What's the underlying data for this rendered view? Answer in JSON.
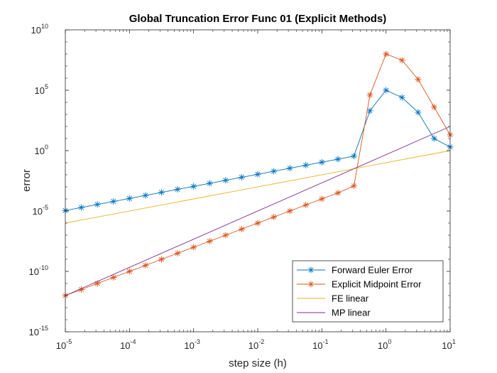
{
  "chart_data": {
    "type": "line",
    "title": "Global Truncation Error Func 01 (Explicit Methods)",
    "xlabel": "step size (h)",
    "ylabel": "error",
    "xscale": "log",
    "yscale": "log",
    "xlim": [
      1e-05,
      10
    ],
    "ylim": [
      1e-15,
      10000000000.0
    ],
    "x_ticks": [
      {
        "value": 1e-05,
        "base": "10",
        "exp": "-5"
      },
      {
        "value": 0.0001,
        "base": "10",
        "exp": "-4"
      },
      {
        "value": 0.001,
        "base": "10",
        "exp": "-3"
      },
      {
        "value": 0.01,
        "base": "10",
        "exp": "-2"
      },
      {
        "value": 0.1,
        "base": "10",
        "exp": "-1"
      },
      {
        "value": 1,
        "base": "10",
        "exp": "0"
      },
      {
        "value": 10,
        "base": "10",
        "exp": "1"
      }
    ],
    "y_ticks": [
      {
        "value": 1e-15,
        "base": "10",
        "exp": "-15"
      },
      {
        "value": 1e-10,
        "base": "10",
        "exp": "-10"
      },
      {
        "value": 1e-05,
        "base": "10",
        "exp": "-5"
      },
      {
        "value": 1,
        "base": "10",
        "exp": ""
      },
      {
        "value": 100000,
        "base": "10",
        "exp": "5"
      },
      {
        "value": 10000000000,
        "base": "10",
        "exp": "10"
      }
    ],
    "y_tick_special": {
      "value": 1,
      "label": "10",
      "exp": "0"
    },
    "legend_position": "bottom-right",
    "grid": false,
    "x": [
      1e-05,
      1.78e-05,
      3.16e-05,
      5.62e-05,
      0.0001,
      0.000178,
      0.000316,
      0.000562,
      0.001,
      0.00178,
      0.00316,
      0.00562,
      0.01,
      0.0178,
      0.0316,
      0.0562,
      0.1,
      0.178,
      0.316,
      0.562,
      1,
      1.78,
      3.16,
      5.62,
      10
    ],
    "series": [
      {
        "name": "Forward Euler Error",
        "color": "#0072BD",
        "marker": "asterisk",
        "values": [
          1.1e-05,
          1.96e-05,
          3.49e-05,
          6.2e-05,
          0.00011,
          0.000196,
          0.000349,
          0.00062,
          0.0011,
          0.00196,
          0.00349,
          0.0062,
          0.011,
          0.0196,
          0.0349,
          0.062,
          0.11,
          0.196,
          0.35,
          2000,
          100000,
          25000,
          1500,
          10,
          2
        ]
      },
      {
        "name": "Explicit Midpoint Error",
        "color": "#D95319",
        "marker": "asterisk",
        "values": [
          1e-12,
          3.16e-12,
          1e-11,
          3.16e-11,
          1e-10,
          3.16e-10,
          1e-09,
          3.16e-09,
          1e-08,
          3.16e-08,
          1e-07,
          3.16e-07,
          1e-06,
          3.16e-06,
          1e-05,
          3.16e-05,
          0.0001,
          0.000316,
          0.0012,
          40000,
          100000000,
          30000000,
          800000,
          4000,
          20
        ]
      },
      {
        "name": "FE linear",
        "color": "#EDB120",
        "marker": "none",
        "x": [
          1e-05,
          10
        ],
        "values": [
          1e-06,
          1
        ]
      },
      {
        "name": "MP linear",
        "color": "#7E2F8E",
        "marker": "none",
        "x": [
          1e-05,
          10
        ],
        "values": [
          1e-12,
          100
        ]
      }
    ]
  }
}
